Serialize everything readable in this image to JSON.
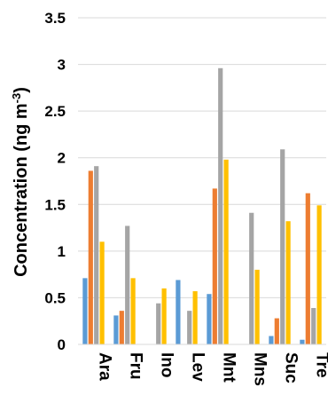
{
  "chart_data": {
    "type": "bar",
    "categories": [
      "Ara",
      "Fru",
      "Ino",
      "Lev",
      "Mnt",
      "Mns",
      "Suc",
      "Tre"
    ],
    "series": [
      {
        "values": [
          0.71,
          0.31,
          0.0,
          0.69,
          0.54,
          0.0,
          0.09,
          0.05
        ]
      },
      {
        "values": [
          1.86,
          0.36,
          0.0,
          0.0,
          1.67,
          0.0,
          0.28,
          1.62
        ]
      },
      {
        "values": [
          1.91,
          1.27,
          0.44,
          0.36,
          2.96,
          1.41,
          2.09,
          0.39
        ]
      },
      {
        "values": [
          1.1,
          0.71,
          0.6,
          0.57,
          1.98,
          0.8,
          1.32,
          1.49
        ]
      }
    ],
    "colors": [
      "#5b9bd5",
      "#ed7d31",
      "#a5a5a5",
      "#ffc000"
    ],
    "title": "",
    "xlabel": "",
    "ylabel": "Concentration (ng m",
    "ylabel_superscript": "-3",
    "ylabel_suffix": ")",
    "ylim": [
      0,
      3.5
    ],
    "yticks": [
      "0",
      "0.5",
      "1",
      "1.5",
      "2",
      "2.5",
      "3",
      "3.5"
    ],
    "grid": true,
    "legend": "none"
  }
}
